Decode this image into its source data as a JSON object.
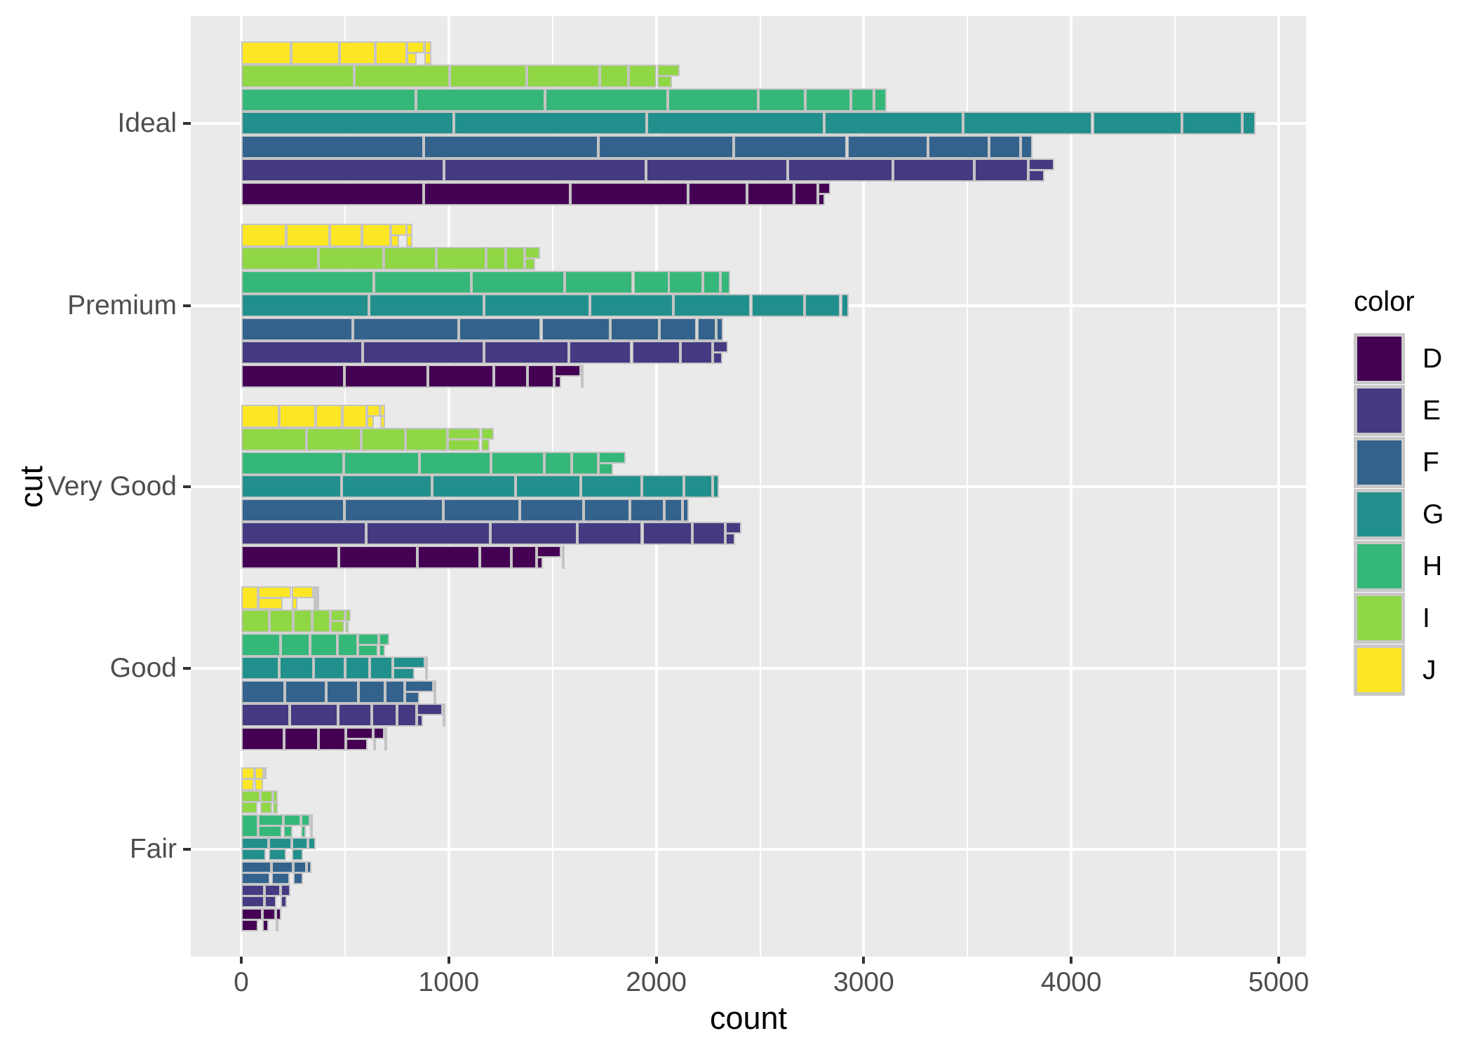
{
  "chart_data": {
    "type": "bar",
    "orientation": "horizontal",
    "position": "dodge",
    "title": "",
    "xlabel": "count",
    "ylabel": "cut",
    "x_ticks": [
      0,
      1000,
      2000,
      3000,
      4000,
      5000
    ],
    "x_minor_ticks": [
      500,
      1500,
      2500,
      3500,
      4500
    ],
    "xlim": [
      0,
      5000
    ],
    "grid": "major white on grey panel",
    "legend_position": "right",
    "categories": [
      "Ideal",
      "Premium",
      "Very Good",
      "Good",
      "Fair"
    ],
    "bar_order_top_to_bottom": [
      "J",
      "I",
      "H",
      "G",
      "F",
      "E",
      "D"
    ],
    "legend": {
      "title": "color",
      "entries": [
        {
          "label": "D",
          "color": "#440154"
        },
        {
          "label": "E",
          "color": "#443A82"
        },
        {
          "label": "F",
          "color": "#33638D"
        },
        {
          "label": "G",
          "color": "#21908C"
        },
        {
          "label": "H",
          "color": "#35B779"
        },
        {
          "label": "I",
          "color": "#8FD744"
        },
        {
          "label": "J",
          "color": "#FDE725"
        }
      ]
    },
    "series": [
      {
        "name": "D",
        "color": "#440154",
        "values": [
          2834,
          1603,
          1513,
          662,
          163
        ]
      },
      {
        "name": "E",
        "color": "#443A82",
        "values": [
          3903,
          2337,
          2400,
          933,
          224
        ]
      },
      {
        "name": "F",
        "color": "#33638D",
        "values": [
          3826,
          2331,
          2164,
          909,
          312
        ]
      },
      {
        "name": "G",
        "color": "#21908C",
        "values": [
          4884,
          2924,
          2299,
          871,
          314
        ]
      },
      {
        "name": "H",
        "color": "#35B779",
        "values": [
          3115,
          2360,
          1824,
          702,
          303
        ]
      },
      {
        "name": "I",
        "color": "#8FD744",
        "values": [
          2093,
          1428,
          1204,
          522,
          175
        ]
      },
      {
        "name": "J",
        "color": "#FDE725",
        "values": [
          896,
          808,
          678,
          307,
          119
        ]
      }
    ],
    "segments_note": "Each bar is subdivided by grey lines into tiles (clarity sub-groups), largest to smallest; tiny tiles pack into two half-height rows at the bar end. Fractions estimated from tile divisions in the image.",
    "segment_fractions": {
      "D": [
        0.31,
        0.25,
        0.2,
        0.1,
        0.08,
        0.04,
        0.011,
        0.006
      ],
      "E": [
        0.25,
        0.25,
        0.175,
        0.13,
        0.1,
        0.067,
        0.016,
        0.01
      ],
      "F": [
        0.23,
        0.22,
        0.17,
        0.143,
        0.102,
        0.077,
        0.04,
        0.015
      ],
      "G": [
        0.21,
        0.19,
        0.175,
        0.137,
        0.128,
        0.088,
        0.06,
        0.013
      ],
      "H": [
        0.27,
        0.2,
        0.19,
        0.14,
        0.073,
        0.07,
        0.036,
        0.02
      ],
      "I": [
        0.26,
        0.22,
        0.177,
        0.168,
        0.067,
        0.065,
        0.026,
        0.017
      ],
      "J": [
        0.267,
        0.26,
        0.193,
        0.171,
        0.047,
        0.026,
        0.018,
        0.018
      ]
    },
    "style": {
      "panel_background": "#EAEAEA",
      "gridline_color": "#FFFFFF",
      "tile_border_color": "#C4C4C4",
      "tick_mark_color": "#333333",
      "tick_label_color": "#4D4D4D",
      "axis_title_color": "#000000",
      "legend_key_border": "#C8C8C8"
    }
  }
}
